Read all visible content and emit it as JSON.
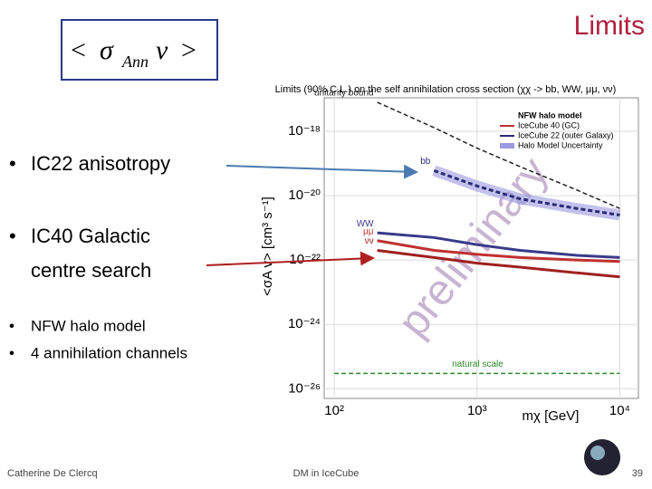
{
  "slide": {
    "title": "Limits",
    "formula": {
      "open": "<",
      "sigma": "σ",
      "sub": "Ann",
      "v": "v",
      "close": ">"
    },
    "bullets": [
      "IC22 anisotropy",
      "IC40 Galactic",
      "centre search",
      "NFW halo model",
      "4 annihilation channels"
    ],
    "footer": {
      "author": "Catherine De Clercq",
      "topic": "DM in IceCube",
      "page": "39"
    }
  },
  "chart_data": {
    "type": "line",
    "title": "Limits (90% C.L.) on the self annihilation cross section (χχ -> bb, WW, μμ, νν)",
    "xlabel": "mχ [GeV]",
    "ylabel": "<σA v> [cm³ s⁻¹]",
    "watermark": "preliminary",
    "xscale": "log",
    "yscale": "log",
    "grid": true,
    "xlim": [
      85,
      13500
    ],
    "ylim": [
      5e-27,
      1.1e-17
    ],
    "xticks": [
      {
        "value": 100,
        "label": "10²"
      },
      {
        "value": 1000,
        "label": "10³"
      },
      {
        "value": 10000,
        "label": "10⁴"
      }
    ],
    "yticks": [
      {
        "value": 1e-18,
        "label": "10⁻¹⁸"
      },
      {
        "value": 1e-20,
        "label": "10⁻²⁰"
      },
      {
        "value": 1e-22,
        "label": "10⁻²²"
      },
      {
        "value": 1e-24,
        "label": "10⁻²⁴"
      },
      {
        "value": 1e-26,
        "label": "10⁻²⁶"
      }
    ],
    "x": [
      100,
      200,
      500,
      1000,
      2000,
      5000,
      10000
    ],
    "series": [
      {
        "name": "unitarity bound",
        "color": "#222222",
        "values": [
          null,
          8e-18,
          1.3e-18,
          3e-19,
          8e-20,
          1.5e-20,
          4e-21
        ]
      },
      {
        "name": "natural scale",
        "color": "#2a8a2a",
        "values": [
          3e-26,
          3e-26,
          3e-26,
          3e-26,
          3e-26,
          3e-26,
          3e-26
        ]
      },
      {
        "name": "bb",
        "color": "#2b2b7a",
        "values": [
          null,
          null,
          6e-20,
          2e-20,
          8e-21,
          4e-21,
          2.5e-21
        ]
      },
      {
        "name": "WW",
        "color": "#3a3a8a",
        "values": [
          null,
          7e-22,
          5e-22,
          3e-22,
          2e-22,
          1.4e-22,
          1.2e-22
        ]
      },
      {
        "name": "μμ",
        "color": "#c03030",
        "values": [
          null,
          4e-22,
          2e-22,
          1.5e-22,
          1.2e-22,
          1e-22,
          9e-23
        ]
      },
      {
        "name": "νν",
        "color": "#a02020",
        "values": [
          null,
          2e-22,
          1.2e-22,
          8e-23,
          6e-23,
          4e-23,
          3e-23
        ]
      }
    ],
    "legend": {
      "title": "NFW halo model",
      "entries": [
        {
          "label": "IceCube 40 (GC)",
          "color": "#c03030"
        },
        {
          "label": "IceCube 22 (outer Galaxy)",
          "color": "#2b2b7a"
        },
        {
          "label": "Halo Model Uncertainty",
          "color": "#9a9ae0"
        }
      ]
    }
  }
}
